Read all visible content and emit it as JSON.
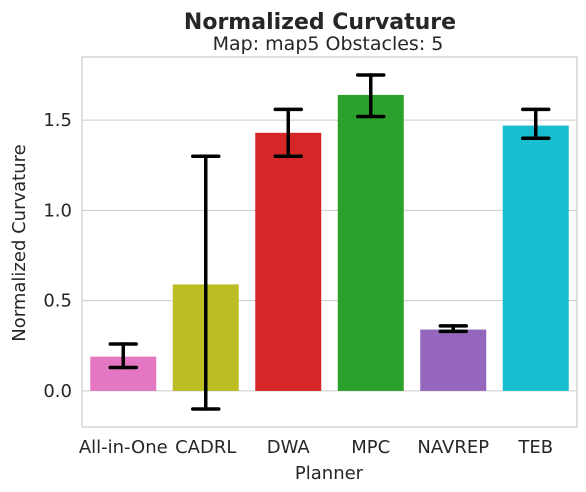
{
  "chart_data": {
    "type": "bar",
    "title": "Normalized Curvature",
    "subtitle": "Map: map5 Obstacles: 5",
    "xlabel": "Planner",
    "ylabel": "Normalized Curvature",
    "categories": [
      "All-in-One",
      "CADRL",
      "DWA",
      "MPC",
      "NAVREP",
      "TEB"
    ],
    "values": [
      0.19,
      0.59,
      1.43,
      1.64,
      0.34,
      1.47
    ],
    "error_low": [
      0.13,
      -0.1,
      1.3,
      1.52,
      0.33,
      1.4
    ],
    "error_high": [
      0.26,
      1.3,
      1.56,
      1.75,
      0.36,
      1.56
    ],
    "colors": [
      "#e377c2",
      "#bcbd22",
      "#d62728",
      "#2ca02c",
      "#9467bd",
      "#17becf"
    ],
    "ylim": [
      -0.2,
      1.85
    ],
    "yticks": [
      "0.0",
      "0.5",
      "1.0",
      "1.5"
    ],
    "grid": true,
    "legend": "none"
  }
}
